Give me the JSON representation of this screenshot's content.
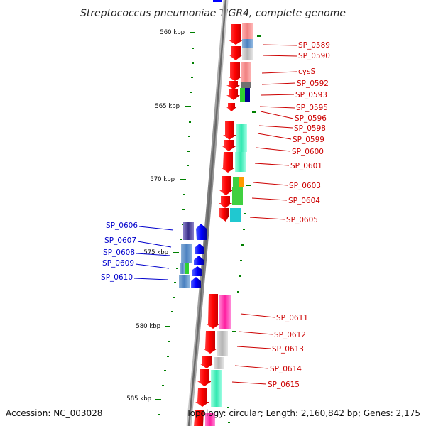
{
  "title": "Streptococcus pneumoniae TIGR4, complete genome",
  "footer": {
    "accession": "Accession: NC_003028",
    "topology": "Topology: circular; Length: 2,160,842 bp; Genes: 2,175"
  },
  "ticks": [
    "560 kbp",
    "565 kbp",
    "570 kbp",
    "575 kbp",
    "580 kbp",
    "585 kbp"
  ],
  "forward_labels": [
    "SP_0589",
    "SP_0590",
    "cysS",
    "SP_0592",
    "SP_0593",
    "SP_0595",
    "SP_0596",
    "SP_0598",
    "SP_0599",
    "SP_0600",
    "SP_0601",
    "SP_0603",
    "SP_0604",
    "SP_0605",
    "SP_0611",
    "SP_0612",
    "SP_0613",
    "SP_0614",
    "SP_0615"
  ],
  "reverse_labels": [
    "SP_0606",
    "SP_0607",
    "SP_0608",
    "SP_0609",
    "SP_0610"
  ],
  "colors": {
    "forward_gene": "#ff0000",
    "reverse_gene": "#0000ff",
    "forward_label": "#cc0000",
    "reverse_label": "#0000cc",
    "backbone": "#808080",
    "tick": "#008000"
  }
}
